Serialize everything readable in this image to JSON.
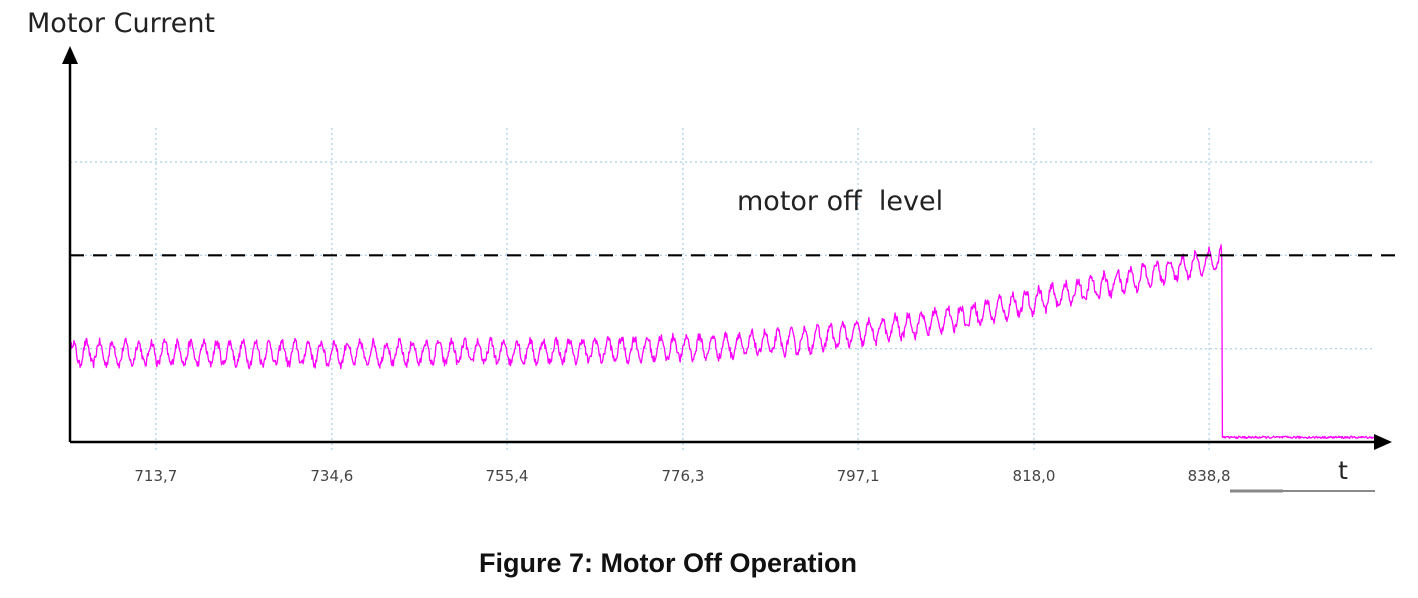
{
  "figure": {
    "caption": "Figure 7: Motor Off Operation"
  },
  "chart_data": {
    "type": "line",
    "title": "",
    "xlabel": "t",
    "ylabel": "Motor Current",
    "x_ticks": [
      "713,7",
      "734,6",
      "755,4",
      "776,3",
      "797,1",
      "818,0",
      "838,8"
    ],
    "x_tick_values": [
      713.7,
      734.6,
      755.4,
      776.3,
      797.1,
      818.0,
      838.8
    ],
    "xlim": [
      703.5,
      858.5
    ],
    "ylim": [
      0,
      3
    ],
    "y_ticks_labeled": false,
    "grid": true,
    "annotation": "motor off  level",
    "threshold": 2.0,
    "series": [
      {
        "color": "#ff00ff",
        "x": [
          703.5,
          720,
          740,
          760,
          780,
          790,
          800,
          810,
          820,
          830,
          840.3,
          840.35,
          858.5
        ],
        "y": [
          0.95,
          0.95,
          0.95,
          0.97,
          1.02,
          1.08,
          1.2,
          1.35,
          1.55,
          1.75,
          1.97,
          0.05,
          0.05
        ],
        "ripple_amplitude": 0.12
      }
    ],
    "colors": {
      "series": "#ff00ff",
      "grid": "#a8cde6",
      "axis": "#000000",
      "threshold": "#000000"
    }
  }
}
